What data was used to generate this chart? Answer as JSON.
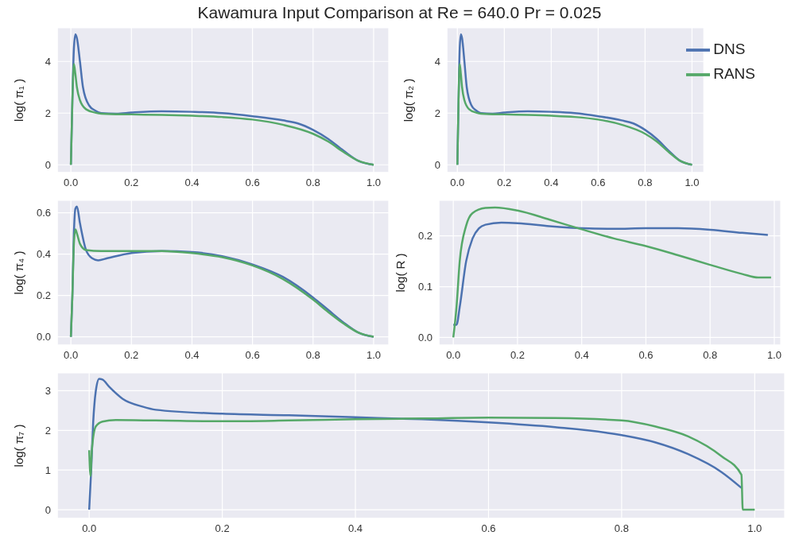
{
  "chart_data": [
    {
      "type": "line",
      "title": "Kawamura Input Comparison at Re = 640.0 Pr = 0.025",
      "ylabel": "log( π₁ )",
      "xlim": [
        -0.045,
        1.05
      ],
      "ylim": [
        -0.3,
        5.3
      ],
      "xticks": [
        {
          "value": 0,
          "label": "0.0"
        },
        {
          "value": 0.2,
          "label": "0.2"
        },
        {
          "value": 0.4,
          "label": "0.4"
        },
        {
          "value": 0.6,
          "label": "0.6"
        },
        {
          "value": 0.8,
          "label": "0.8"
        },
        {
          "value": 1,
          "label": "1.0"
        }
      ],
      "yticks": [
        0,
        2,
        4
      ],
      "grid": true,
      "legend": false,
      "series": [
        {
          "color": "#4c72b0",
          "x": [
            0,
            0.005,
            0.01,
            0.015,
            0.02,
            0.03,
            0.04,
            0.06,
            0.08,
            0.1,
            0.15,
            0.2,
            0.3,
            0.4,
            0.5,
            0.6,
            0.7,
            0.75,
            0.8,
            0.85,
            0.9,
            0.95,
            1.0
          ],
          "values": [
            0,
            2.5,
            4.5,
            5.05,
            4.9,
            4.0,
            3.0,
            2.3,
            2.1,
            2.0,
            1.98,
            2.02,
            2.07,
            2.05,
            2.0,
            1.88,
            1.72,
            1.6,
            1.35,
            1.0,
            0.55,
            0.15,
            0
          ]
        },
        {
          "color": "#55a868",
          "x": [
            0,
            0.005,
            0.01,
            0.015,
            0.02,
            0.03,
            0.05,
            0.08,
            0.1,
            0.2,
            0.3,
            0.4,
            0.5,
            0.6,
            0.7,
            0.8,
            0.85,
            0.9,
            0.95,
            1.0
          ],
          "values": [
            0,
            2.5,
            3.9,
            3.5,
            3.0,
            2.5,
            2.15,
            2.02,
            1.98,
            1.95,
            1.93,
            1.9,
            1.85,
            1.75,
            1.55,
            1.2,
            0.9,
            0.5,
            0.15,
            0
          ]
        }
      ]
    },
    {
      "type": "line",
      "ylabel": "log( π₂ )",
      "xlim": [
        -0.045,
        1.05
      ],
      "ylim": [
        -0.3,
        5.3
      ],
      "xticks": [
        {
          "value": 0,
          "label": "0.0"
        },
        {
          "value": 0.2,
          "label": "0.2"
        },
        {
          "value": 0.4,
          "label": "0.4"
        },
        {
          "value": 0.6,
          "label": "0.6"
        },
        {
          "value": 0.8,
          "label": "0.8"
        },
        {
          "value": 1,
          "label": "1.0"
        }
      ],
      "yticks": [
        0,
        2,
        4
      ],
      "grid": true,
      "legend": "top right",
      "series": [
        {
          "name": "DNS",
          "color": "#4c72b0",
          "x": [
            0,
            0.005,
            0.01,
            0.015,
            0.02,
            0.03,
            0.04,
            0.06,
            0.08,
            0.1,
            0.15,
            0.2,
            0.3,
            0.4,
            0.5,
            0.6,
            0.7,
            0.75,
            0.8,
            0.85,
            0.9,
            0.95,
            1.0
          ],
          "values": [
            0,
            2.5,
            4.5,
            5.05,
            4.9,
            4.0,
            3.0,
            2.3,
            2.1,
            2.0,
            1.98,
            2.02,
            2.07,
            2.05,
            2.0,
            1.88,
            1.72,
            1.6,
            1.35,
            1.0,
            0.55,
            0.15,
            0
          ]
        },
        {
          "name": "RANS",
          "color": "#55a868",
          "x": [
            0,
            0.005,
            0.01,
            0.015,
            0.02,
            0.03,
            0.05,
            0.08,
            0.1,
            0.2,
            0.3,
            0.4,
            0.5,
            0.6,
            0.7,
            0.8,
            0.85,
            0.9,
            0.95,
            1.0
          ],
          "values": [
            0,
            2.5,
            3.9,
            3.5,
            3.0,
            2.5,
            2.15,
            2.02,
            1.98,
            1.95,
            1.93,
            1.9,
            1.85,
            1.75,
            1.55,
            1.2,
            0.9,
            0.5,
            0.15,
            0
          ]
        }
      ]
    },
    {
      "type": "line",
      "ylabel": "log( π₄ )",
      "xlim": [
        -0.045,
        1.05
      ],
      "ylim": [
        -0.04,
        0.66
      ],
      "xticks": [
        {
          "value": 0,
          "label": "0.0"
        },
        {
          "value": 0.2,
          "label": "0.2"
        },
        {
          "value": 0.4,
          "label": "0.4"
        },
        {
          "value": 0.6,
          "label": "0.6"
        },
        {
          "value": 0.8,
          "label": "0.8"
        },
        {
          "value": 1,
          "label": "1.0"
        }
      ],
      "yticks": [
        {
          "value": 0,
          "label": "0.0"
        },
        {
          "value": 0.2,
          "label": "0.2"
        },
        {
          "value": 0.4,
          "label": "0.4"
        },
        {
          "value": 0.6,
          "label": "0.6"
        }
      ],
      "grid": true,
      "legend": false,
      "series": [
        {
          "color": "#4c72b0",
          "x": [
            0,
            0.005,
            0.01,
            0.015,
            0.02,
            0.03,
            0.05,
            0.07,
            0.09,
            0.12,
            0.2,
            0.3,
            0.4,
            0.5,
            0.6,
            0.7,
            0.8,
            0.85,
            0.9,
            0.95,
            1.0
          ],
          "values": [
            0,
            0.2,
            0.5,
            0.62,
            0.63,
            0.55,
            0.42,
            0.38,
            0.37,
            0.38,
            0.405,
            0.415,
            0.41,
            0.39,
            0.35,
            0.29,
            0.19,
            0.13,
            0.07,
            0.02,
            0
          ]
        },
        {
          "color": "#55a868",
          "x": [
            0,
            0.005,
            0.01,
            0.015,
            0.02,
            0.03,
            0.05,
            0.1,
            0.2,
            0.3,
            0.4,
            0.5,
            0.6,
            0.7,
            0.8,
            0.85,
            0.9,
            0.95,
            1.0
          ],
          "values": [
            0,
            0.2,
            0.45,
            0.52,
            0.5,
            0.45,
            0.42,
            0.415,
            0.415,
            0.415,
            0.405,
            0.385,
            0.345,
            0.28,
            0.18,
            0.12,
            0.065,
            0.02,
            0
          ]
        }
      ]
    },
    {
      "type": "line",
      "ylabel": "log( R )",
      "xlim": [
        -0.045,
        1.02
      ],
      "ylim": [
        -0.015,
        0.27
      ],
      "xticks": [
        {
          "value": 0,
          "label": "0.0"
        },
        {
          "value": 0.2,
          "label": "0.2"
        },
        {
          "value": 0.4,
          "label": "0.4"
        },
        {
          "value": 0.6,
          "label": "0.6"
        },
        {
          "value": 0.8,
          "label": "0.8"
        },
        {
          "value": 1,
          "label": "1.0"
        }
      ],
      "yticks": [
        {
          "value": 0,
          "label": "0.0"
        },
        {
          "value": 0.1,
          "label": "0.1"
        },
        {
          "value": 0.2,
          "label": "0.2"
        }
      ],
      "grid": true,
      "legend": false,
      "series": [
        {
          "color": "#4c72b0",
          "x": [
            0,
            0.01,
            0.02,
            0.04,
            0.06,
            0.08,
            0.1,
            0.15,
            0.2,
            0.3,
            0.4,
            0.5,
            0.6,
            0.7,
            0.8,
            0.9,
            0.98
          ],
          "values": [
            0.025,
            0.025,
            0.06,
            0.15,
            0.195,
            0.215,
            0.222,
            0.226,
            0.225,
            0.219,
            0.215,
            0.214,
            0.215,
            0.215,
            0.212,
            0.206,
            0.202
          ]
        },
        {
          "color": "#55a868",
          "x": [
            0,
            0.01,
            0.02,
            0.04,
            0.06,
            0.1,
            0.13,
            0.2,
            0.3,
            0.4,
            0.5,
            0.6,
            0.7,
            0.8,
            0.9,
            0.95,
            0.99
          ],
          "values": [
            0,
            0.06,
            0.15,
            0.22,
            0.245,
            0.255,
            0.256,
            0.25,
            0.232,
            0.213,
            0.195,
            0.18,
            0.162,
            0.143,
            0.125,
            0.118,
            0.118
          ]
        }
      ]
    },
    {
      "type": "line",
      "ylabel": "log( π₇ )",
      "xlim": [
        -0.048,
        1.045
      ],
      "ylim": [
        -0.22,
        3.45
      ],
      "xticks": [
        {
          "value": 0,
          "label": "0.0"
        },
        {
          "value": 0.2,
          "label": "0.2"
        },
        {
          "value": 0.4,
          "label": "0.4"
        },
        {
          "value": 0.6,
          "label": "0.6"
        },
        {
          "value": 0.8,
          "label": "0.8"
        },
        {
          "value": 1,
          "label": "1.0"
        }
      ],
      "yticks": [
        0,
        1,
        2,
        3
      ],
      "grid": true,
      "legend": false,
      "series": [
        {
          "color": "#4c72b0",
          "x": [
            0,
            0.003,
            0.006,
            0.01,
            0.015,
            0.02,
            0.03,
            0.05,
            0.08,
            0.1,
            0.2,
            0.3,
            0.4,
            0.5,
            0.6,
            0.7,
            0.8,
            0.85,
            0.9,
            0.95,
            0.98
          ],
          "values": [
            0,
            1.0,
            2.2,
            3.0,
            3.3,
            3.28,
            3.1,
            2.8,
            2.6,
            2.52,
            2.42,
            2.38,
            2.33,
            2.28,
            2.2,
            2.08,
            1.88,
            1.7,
            1.4,
            0.95,
            0.55
          ]
        },
        {
          "color": "#55a868",
          "x": [
            0,
            0.002,
            0.004,
            0.01,
            0.02,
            0.04,
            0.1,
            0.2,
            0.3,
            0.4,
            0.5,
            0.6,
            0.7,
            0.8,
            0.85,
            0.9,
            0.95,
            0.98,
            0.982,
            1.0
          ],
          "values": [
            1.5,
            0.85,
            1.5,
            2.1,
            2.22,
            2.26,
            2.25,
            2.23,
            2.25,
            2.28,
            2.3,
            2.32,
            2.31,
            2.25,
            2.1,
            1.85,
            1.35,
            0.88,
            0,
            0
          ]
        }
      ]
    }
  ]
}
